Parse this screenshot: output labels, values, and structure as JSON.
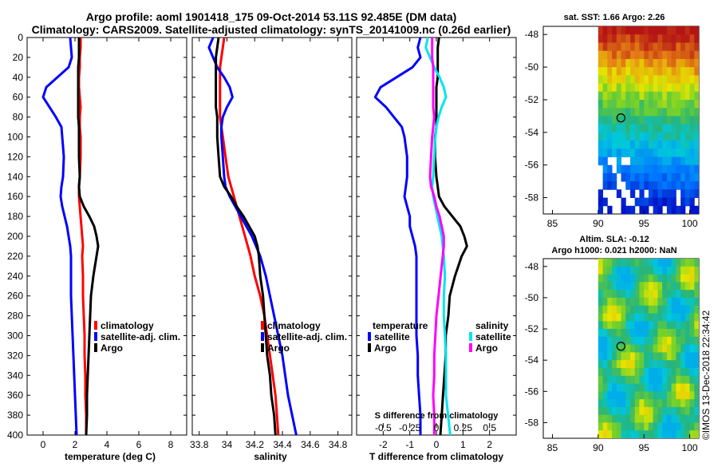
{
  "titles": {
    "line1": "Argo profile: aoml 1901418_175 09-Oct-2014 53.11S 92.485E (DM data)",
    "line2": "Climatology: CARS2009. Satellite-adjusted climatology: synTS_20141009.nc (0.26d earlier)"
  },
  "depth_axis": {
    "ylim": [
      0,
      400
    ],
    "ticks": [
      "0",
      "20",
      "40",
      "60",
      "80",
      "100",
      "120",
      "140",
      "160",
      "180",
      "200",
      "220",
      "240",
      "260",
      "280",
      "300",
      "320",
      "340",
      "360",
      "380",
      "400"
    ]
  },
  "colors": {
    "argo": "#000000",
    "climatology": "#ff0000",
    "satellite": "#0000ff",
    "sat_salinity": "#00e5ee",
    "clim_salinity_diff": "#ff00ff"
  },
  "chart_data": [
    {
      "type": "line",
      "name": "temperature",
      "xlabel": "temperature (deg C)",
      "xlim": [
        -1,
        9
      ],
      "xticks": [
        "0",
        "2",
        "4",
        "6",
        "8"
      ],
      "xtick_values": [
        0,
        2,
        4,
        6,
        8
      ],
      "depth": [
        0,
        10,
        20,
        30,
        40,
        50,
        60,
        70,
        80,
        90,
        100,
        120,
        140,
        150,
        160,
        170,
        180,
        190,
        200,
        210,
        220,
        240,
        260,
        280,
        300,
        320,
        340,
        360,
        380,
        400
      ],
      "series": [
        {
          "name": "climatology",
          "color": "#ff0000",
          "values": [
            2.35,
            2.35,
            2.3,
            2.3,
            2.25,
            2.25,
            2.3,
            2.35,
            2.3,
            2.3,
            2.35,
            2.35,
            2.3,
            2.25,
            2.25,
            2.3,
            2.35,
            2.4,
            2.45,
            2.5,
            2.45,
            2.5,
            2.5,
            2.55,
            2.6,
            2.6,
            2.65,
            2.65,
            2.7,
            2.7
          ]
        },
        {
          "name": "satellite-adj. clim.",
          "color": "#0000ff",
          "values": [
            1.7,
            1.75,
            1.8,
            1.6,
            0.9,
            0.2,
            0.0,
            0.4,
            0.8,
            1.15,
            1.2,
            1.3,
            1.25,
            1.15,
            1.1,
            1.2,
            1.35,
            1.5,
            1.6,
            1.7,
            1.75,
            1.75,
            1.75,
            1.8,
            1.85,
            1.9,
            1.95,
            2.0,
            2.05,
            2.1
          ]
        },
        {
          "name": "Argo",
          "color": "#000000",
          "values": [
            2.25,
            2.25,
            2.25,
            2.2,
            2.2,
            2.2,
            2.2,
            2.2,
            2.2,
            2.25,
            2.25,
            2.25,
            2.3,
            2.25,
            2.3,
            2.55,
            2.9,
            3.2,
            3.35,
            3.45,
            3.35,
            3.15,
            3.0,
            2.95,
            2.9,
            2.85,
            2.8,
            2.75,
            2.75,
            2.7
          ]
        }
      ],
      "legend": [
        "climatology",
        "satellite-adj. clim.",
        "Argo"
      ]
    },
    {
      "type": "line",
      "name": "salinity",
      "xlabel": "salinity",
      "xlim": [
        33.75,
        34.9
      ],
      "xticks": [
        "33.8",
        "34",
        "34.2",
        "34.4",
        "34.6",
        "34.8"
      ],
      "xtick_values": [
        33.8,
        34,
        34.2,
        34.4,
        34.6,
        34.8
      ],
      "depth": [
        0,
        10,
        20,
        30,
        40,
        50,
        60,
        70,
        80,
        90,
        100,
        120,
        140,
        150,
        160,
        170,
        180,
        190,
        200,
        210,
        220,
        240,
        260,
        280,
        300,
        320,
        340,
        360,
        380,
        400
      ],
      "series": [
        {
          "name": "climatology",
          "color": "#ff0000",
          "values": [
            33.98,
            33.97,
            33.96,
            33.95,
            33.95,
            33.95,
            33.95,
            33.95,
            33.95,
            33.96,
            33.97,
            33.99,
            34.01,
            34.03,
            34.05,
            34.07,
            34.09,
            34.11,
            34.13,
            34.15,
            34.17,
            34.2,
            34.24,
            34.27,
            34.29,
            34.31,
            34.33,
            34.35,
            34.36,
            34.37
          ]
        },
        {
          "name": "satellite-adj. clim.",
          "color": "#0000ff",
          "values": [
            33.9,
            33.87,
            33.9,
            33.93,
            33.98,
            34.02,
            34.04,
            34.0,
            33.97,
            33.96,
            33.96,
            33.97,
            33.98,
            33.99,
            34.02,
            34.06,
            34.1,
            34.14,
            34.18,
            34.21,
            34.24,
            34.28,
            34.31,
            34.34,
            34.37,
            34.4,
            34.42,
            34.44,
            34.47,
            34.5
          ]
        },
        {
          "name": "Argo",
          "color": "#000000",
          "values": [
            33.94,
            33.93,
            33.92,
            33.92,
            33.92,
            33.92,
            33.92,
            33.92,
            33.93,
            33.93,
            33.93,
            33.94,
            33.95,
            33.98,
            34.03,
            34.07,
            34.12,
            34.16,
            34.2,
            34.22,
            34.23,
            34.24,
            34.26,
            34.27,
            34.28,
            34.29,
            34.31,
            34.32,
            34.34,
            34.35
          ]
        }
      ],
      "legend": [
        "climatology",
        "satellite-adj. clim.",
        "Argo"
      ]
    },
    {
      "type": "line",
      "name": "differences",
      "xlabel": "T difference from climatology",
      "top_xlabel": "S difference from climatology",
      "xlim": [
        -3,
        3
      ],
      "xticks": [
        "-2",
        "-1",
        "0",
        "1",
        "2"
      ],
      "xtick_values": [
        -2,
        -1,
        0,
        1,
        2
      ],
      "sticks": [
        "-0.5",
        "-0.25",
        "0",
        "0.25",
        "0.5"
      ],
      "stick_values": [
        -0.5,
        -0.25,
        0,
        0.25,
        0.5
      ],
      "depth": [
        0,
        10,
        20,
        30,
        40,
        50,
        60,
        70,
        80,
        90,
        100,
        120,
        140,
        150,
        160,
        170,
        180,
        190,
        200,
        210,
        220,
        240,
        260,
        280,
        300,
        320,
        340,
        360,
        380,
        400
      ],
      "series": [
        {
          "name": "temperature satellite",
          "color": "#0000ff",
          "values": [
            -0.6,
            -0.7,
            -0.6,
            -0.9,
            -1.5,
            -2.1,
            -2.3,
            -1.9,
            -1.6,
            -1.3,
            -1.2,
            -1.1,
            -1.1,
            -1.15,
            -1.2,
            -1.1,
            -1.0,
            -1.0,
            -0.9,
            -0.8,
            -0.75,
            -0.75,
            -0.75,
            -0.75,
            -0.75,
            -0.7,
            -0.7,
            -0.65,
            -0.6,
            -0.6
          ]
        },
        {
          "name": "temperature Argo",
          "color": "#000000",
          "values": [
            0.1,
            0.05,
            0.05,
            0.05,
            0.05,
            0.0,
            0.0,
            0.0,
            0.0,
            0.0,
            -0.05,
            -0.05,
            0.0,
            0.05,
            0.1,
            0.3,
            0.6,
            0.9,
            1.05,
            1.15,
            0.95,
            0.7,
            0.5,
            0.45,
            0.35,
            0.35,
            0.3,
            0.25,
            0.2,
            0.15
          ]
        },
        {
          "name": "salinity satellite",
          "color": "#00e5ee",
          "values": [
            -0.08,
            -0.1,
            -0.06,
            -0.02,
            0.03,
            0.07,
            0.09,
            0.05,
            0.02,
            0.0,
            -0.01,
            -0.02,
            -0.03,
            -0.04,
            -0.03,
            -0.01,
            0.01,
            0.03,
            0.05,
            0.06,
            0.07,
            0.08,
            0.07,
            0.07,
            0.08,
            0.09,
            0.09,
            0.09,
            0.11,
            0.13
          ]
        },
        {
          "name": "salinity Argo",
          "color": "#ff00ff",
          "values": [
            -0.04,
            -0.04,
            -0.04,
            -0.03,
            -0.03,
            -0.03,
            -0.03,
            -0.03,
            -0.02,
            -0.03,
            -0.04,
            -0.05,
            -0.06,
            -0.05,
            -0.02,
            0.0,
            0.03,
            0.05,
            0.07,
            0.07,
            0.06,
            0.04,
            0.02,
            0.0,
            -0.01,
            -0.02,
            -0.02,
            -0.03,
            -0.02,
            -0.02
          ]
        }
      ],
      "legend_temperature_title": "temperature",
      "legend_salinity_title": "salinity",
      "legend_temperature": [
        "satellite",
        "Argo"
      ],
      "legend_salinity": [
        "satellite",
        "Argo"
      ]
    },
    {
      "type": "heatmap",
      "name": "sst_map",
      "title": "sat. SST: 1.66 Argo: 2.26",
      "xlim": [
        84,
        101
      ],
      "ylim": [
        -59,
        -47.5
      ],
      "xticks": [
        "85",
        "90",
        "95",
        "100"
      ],
      "xtick_values": [
        85,
        90,
        95,
        100
      ],
      "yticks": [
        "-48",
        "-50",
        "-52",
        "-54",
        "-56",
        "-58"
      ],
      "ytick_values": [
        -48,
        -50,
        -52,
        -54,
        -56,
        -58
      ],
      "argo_position": {
        "lon": 92.485,
        "lat": -53.11
      }
    },
    {
      "type": "heatmap",
      "name": "sla_map",
      "title_line1": "Altim. SLA: -0.12",
      "title_line2": "Argo h1000: 0.021 h2000: NaN",
      "xlim": [
        84,
        101
      ],
      "ylim": [
        -59,
        -47.5
      ],
      "xticks": [
        "85",
        "90",
        "95",
        "100"
      ],
      "xtick_values": [
        85,
        90,
        95,
        100
      ],
      "yticks": [
        "-48",
        "-50",
        "-52",
        "-54",
        "-56",
        "-58"
      ],
      "ytick_values": [
        -48,
        -50,
        -52,
        -54,
        -56,
        -58
      ],
      "argo_position": {
        "lon": 92.485,
        "lat": -53.11
      }
    }
  ],
  "watermark": "©IMOS 13-Dec-2018 22:34:42"
}
